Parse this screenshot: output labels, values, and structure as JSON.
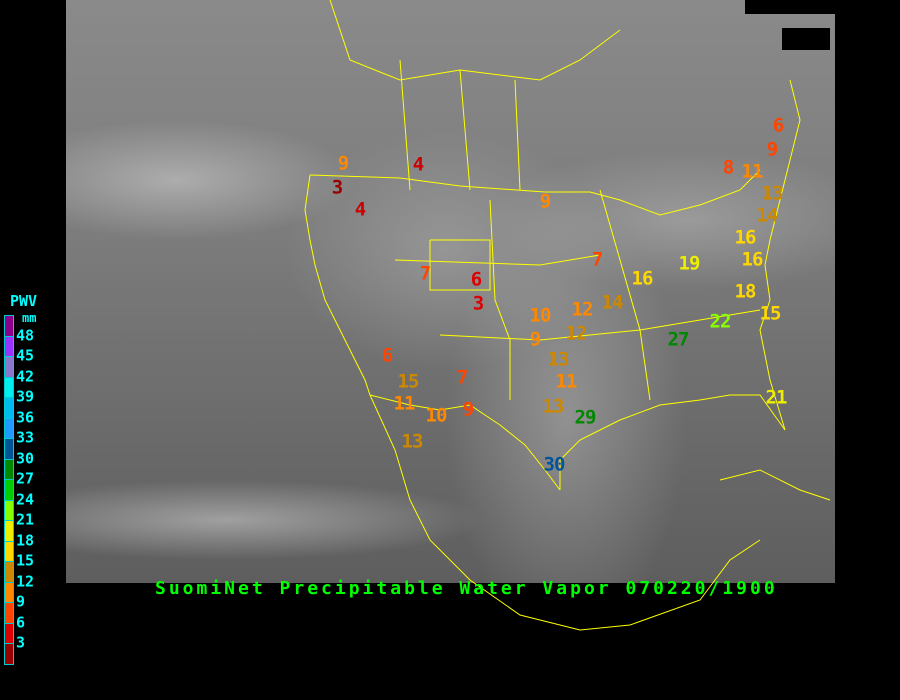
{
  "title": "SuomiNet Precipitable Water Vapor 070220/1900",
  "legend": {
    "title": "PWV",
    "unit": "mm",
    "labels": [
      "48",
      "45",
      "42",
      "39",
      "36",
      "33",
      "30",
      "27",
      "24",
      "21",
      "18",
      "15",
      "12",
      "9",
      "6",
      "3"
    ],
    "colors": [
      "#8a008a",
      "#9933ff",
      "#8877cc",
      "#00eeee",
      "#00bbee",
      "#2299ff",
      "#005599",
      "#008800",
      "#00cc00",
      "#88ff00",
      "#eeee00",
      "#ffd700",
      "#cc8800",
      "#ff8800",
      "#ff4400",
      "#dd0000",
      "#990000"
    ]
  },
  "stations": [
    {
      "value": "4",
      "color": "#cc0000"
    },
    {
      "value": "9",
      "color": "#ff8800"
    },
    {
      "value": "3",
      "color": "#990000"
    },
    {
      "value": "4",
      "color": "#cc0000"
    },
    {
      "value": "9",
      "color": "#ff8800"
    },
    {
      "value": "7",
      "color": "#ff4400"
    },
    {
      "value": "6",
      "color": "#dd0000"
    },
    {
      "value": "3",
      "color": "#dd0000"
    },
    {
      "value": "7",
      "color": "#ff4400"
    },
    {
      "value": "6",
      "color": "#ff4400"
    },
    {
      "value": "15",
      "color": "#cc8800"
    },
    {
      "value": "7",
      "color": "#ff4400"
    },
    {
      "value": "11",
      "color": "#ff8800"
    },
    {
      "value": "10",
      "color": "#ff8800"
    },
    {
      "value": "9",
      "color": "#ff4400"
    },
    {
      "value": "13",
      "color": "#cc8800"
    },
    {
      "value": "10",
      "color": "#ff8800"
    },
    {
      "value": "9",
      "color": "#ff8800"
    },
    {
      "value": "12",
      "color": "#ff8800"
    },
    {
      "value": "12",
      "color": "#cc8800"
    },
    {
      "value": "13",
      "color": "#cc8800"
    },
    {
      "value": "11",
      "color": "#ff8800"
    },
    {
      "value": "14",
      "color": "#cc8800"
    },
    {
      "value": "16",
      "color": "#ffd700"
    },
    {
      "value": "19",
      "color": "#eeee00"
    },
    {
      "value": "27",
      "color": "#008800"
    },
    {
      "value": "22",
      "color": "#88ff00"
    },
    {
      "value": "18",
      "color": "#ffd700"
    },
    {
      "value": "15",
      "color": "#ffd700"
    },
    {
      "value": "13",
      "color": "#cc8800"
    },
    {
      "value": "29",
      "color": "#008800"
    },
    {
      "value": "30",
      "color": "#005599"
    },
    {
      "value": "21",
      "color": "#eeee00"
    },
    {
      "value": "6",
      "color": "#ff4400"
    },
    {
      "value": "9",
      "color": "#ff4400"
    },
    {
      "value": "8",
      "color": "#ff4400"
    },
    {
      "value": "11",
      "color": "#ff8800"
    },
    {
      "value": "13",
      "color": "#cc8800"
    },
    {
      "value": "14",
      "color": "#cc8800"
    },
    {
      "value": "16",
      "color": "#ffd700"
    },
    {
      "value": "16",
      "color": "#ffd700"
    }
  ]
}
